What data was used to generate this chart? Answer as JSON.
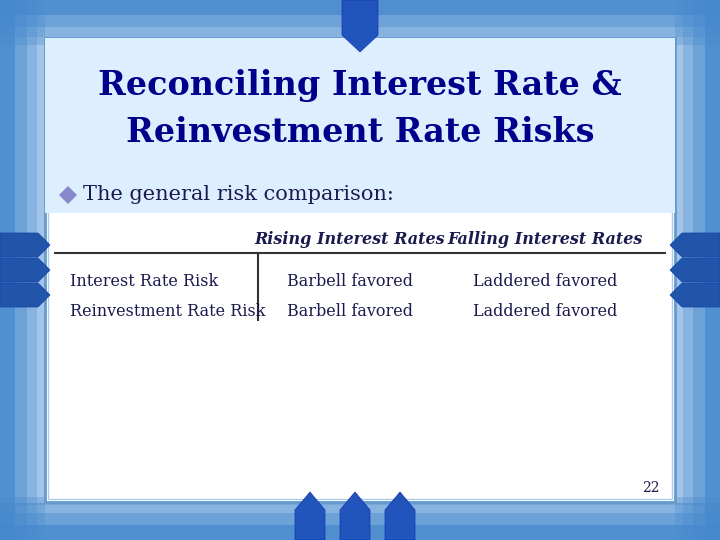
{
  "title_line1": "Reconciling Interest Rate &",
  "title_line2": "Reinvestment Rate Risks",
  "bullet_text": "The general risk comparison:",
  "bullet_color": "#8888cc",
  "title_color": "#00008B",
  "body_text_color": "#1a1a4e",
  "table_header_col2": "Rising Interest Rates",
  "table_header_col3": "Falling Interest Rates",
  "table_rows": [
    [
      "Interest Rate Risk",
      "Barbell favored",
      "Laddered favored"
    ],
    [
      "Reinvestment Rate Risk",
      "Barbell favored",
      "Laddered favored"
    ]
  ],
  "slide_bg": "#cde0f5",
  "border_outer_color": "#5599dd",
  "inner_bg": "#ffffff",
  "inner_light_bg": "#eef4ff",
  "page_number": "22",
  "dark_blue": "#00008B",
  "mid_blue": "#4477bb",
  "arrow_blue": "#3366cc",
  "arrow_dark": "#1144aa"
}
